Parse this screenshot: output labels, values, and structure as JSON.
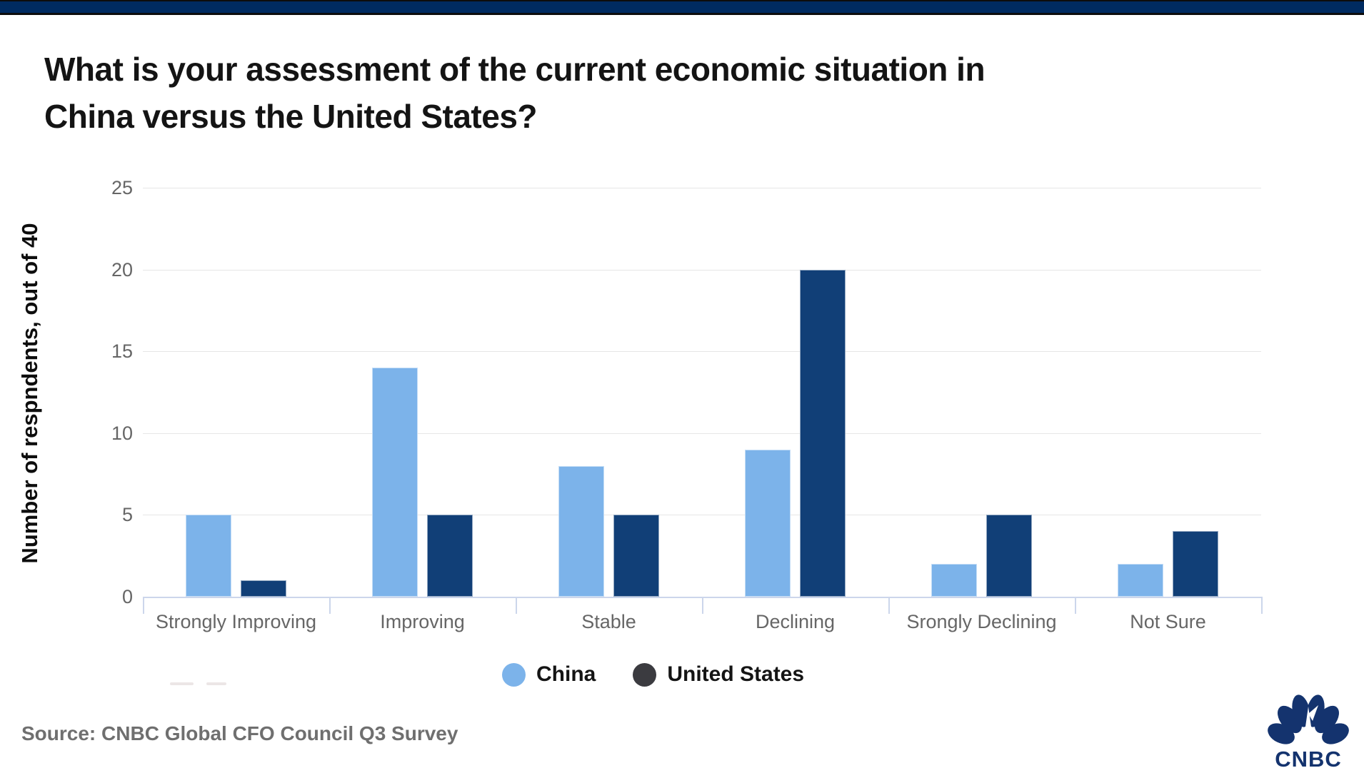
{
  "page": {
    "heading_lines": [
      "What is your assessment of the current economic situation in",
      "China versus the United States?"
    ],
    "source": "Source: CNBC Global CFO Council Q3 Survey"
  },
  "branding": {
    "logo_text": "CNBC",
    "logo_color": "#14336e"
  },
  "topbar": {
    "color": "#002b61"
  },
  "chart_data": {
    "type": "bar",
    "categories": [
      "Strongly Improving",
      "Improving",
      "Stable",
      "Declining",
      "Srongly Declining",
      "Not Sure"
    ],
    "series": [
      {
        "name": "China",
        "color": "#7cb3ea",
        "legend_marker_color": "#7cb3ea",
        "values": [
          5,
          14,
          8,
          9,
          2,
          2
        ]
      },
      {
        "name": "United States",
        "color": "#113f77",
        "legend_marker_color": "#3b3b40",
        "values": [
          1,
          5,
          5,
          20,
          5,
          4
        ]
      }
    ],
    "title": "",
    "xlabel": "",
    "ylabel": "Number of respndents, out of 40",
    "ylim": [
      0,
      25
    ],
    "yticks": [
      0,
      5,
      10,
      15,
      20,
      25
    ],
    "grid": true,
    "legend_position": "bottom",
    "axis_line_color": "#ccd6eb",
    "gridline_color": "#e6e6e6",
    "tick_label_color": "#666666"
  }
}
